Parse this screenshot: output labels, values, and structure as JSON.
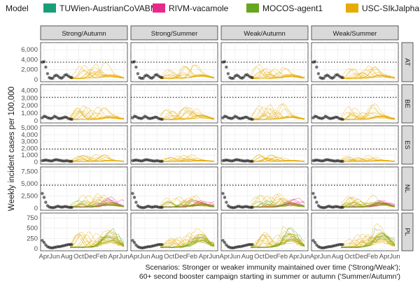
{
  "chart_data": {
    "type": "line",
    "legend": {
      "title": "Model",
      "items": [
        {
          "name": "TUWien-AustrianCoVABM",
          "color": "#1b9e77"
        },
        {
          "name": "RIVM-vacamole",
          "color": "#e7298a"
        },
        {
          "name": "MOCOS-agent1",
          "color": "#66a61e"
        },
        {
          "name": "USC-SIkJalpha",
          "color": "#e6ab02"
        }
      ]
    },
    "ylabel": "Weekly incident cases per 100,000",
    "caption_lines": [
      "Scenarios: Stronger or weaker immunity maintained over time ('Strong/Weak');",
      "60+ second booster campaign starting in summer or autumn ('Summer/Autumn')"
    ],
    "scenarios": [
      "Strong/Autumn",
      "Strong/Summer",
      "Weak/Autumn",
      "Weak/Summer"
    ],
    "x_ticks": [
      "Apr",
      "Jun",
      "Aug",
      "Oct",
      "Dec",
      "Feb",
      "Apr",
      "Jun"
    ],
    "observed_color": "#000000",
    "threshold_style": "dotted",
    "countries": [
      {
        "code": "AT",
        "yticks": [
          "0",
          "2,000",
          "4,000",
          "6,000"
        ],
        "ymax": 7000,
        "threshold": 3500,
        "observed": [
          3500,
          3600,
          2500,
          1200,
          400,
          250,
          300,
          700,
          900,
          700,
          400,
          300,
          500,
          900,
          1000,
          700,
          500,
          400
        ],
        "peak": 2400,
        "late_peak": 0.25,
        "models": [
          "USC-SIkJalpha"
        ]
      },
      {
        "code": "BE",
        "yticks": [
          "0",
          "1,000",
          "2,000",
          "3,000",
          "4,000"
        ],
        "ymax": 4500,
        "threshold": 3100,
        "observed": [
          400,
          600,
          550,
          400,
          350,
          300,
          400,
          600,
          500,
          350,
          300,
          350,
          400,
          500,
          450,
          300,
          250,
          200
        ],
        "peak": 1700,
        "late_peak": 0.25,
        "models": [
          "USC-SIkJalpha"
        ]
      },
      {
        "code": "ES",
        "yticks": [
          "0",
          "1,000",
          "2,000",
          "3,000",
          "4,000",
          "5,000"
        ],
        "ymax": 5000,
        "threshold": 1900,
        "observed": [
          200,
          250,
          300,
          250,
          200,
          150,
          200,
          300,
          350,
          300,
          250,
          200,
          150,
          150,
          200,
          150,
          100,
          100
        ],
        "peak": 900,
        "late_peak": 0.15,
        "models": [
          "USC-SIkJalpha"
        ]
      },
      {
        "code": "NL",
        "yticks": [
          "0",
          "2,500",
          "5,000",
          "7,500"
        ],
        "ymax": 8000,
        "threshold": 4700,
        "observed": [
          3000,
          2200,
          1200,
          500,
          250,
          150,
          100,
          150,
          300,
          400,
          300,
          200,
          250,
          350,
          300,
          200,
          150,
          150
        ],
        "peak": 2200,
        "late_peak": 0.3,
        "models": [
          "USC-SIkJalpha",
          "RIVM-vacamole",
          "MOCOS-agent1"
        ]
      },
      {
        "code": "PL",
        "yticks": [
          "0",
          "250",
          "500",
          "750"
        ],
        "ymax": 820,
        "threshold": null,
        "observed": [
          200,
          150,
          90,
          50,
          30,
          20,
          20,
          30,
          40,
          50,
          50,
          60,
          70,
          80,
          90,
          100,
          100,
          100
        ],
        "peak": 320,
        "late_peak": 0.8,
        "models": [
          "USC-SIkJalpha",
          "MOCOS-agent1"
        ]
      }
    ]
  }
}
